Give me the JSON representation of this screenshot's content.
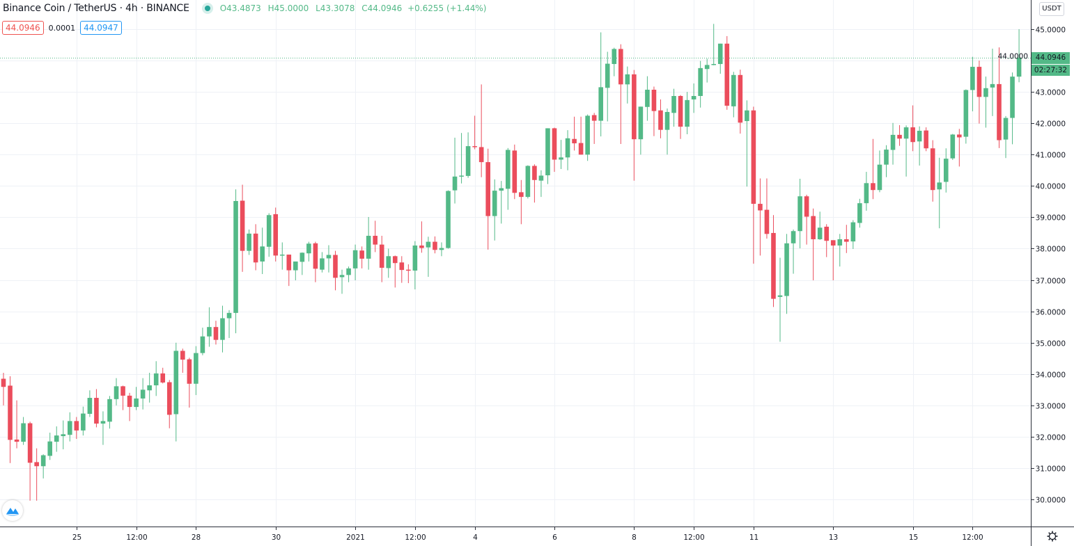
{
  "header": {
    "symbol_title": "Binance Coin / TetherUS · 4h · BINANCE",
    "open_label": "O",
    "open": "43.4873",
    "high_label": "H",
    "high": "45.0000",
    "low_label": "L",
    "low": "43.3078",
    "close_label": "C",
    "close": "44.0946",
    "change": "+0.6255 (+1.44%)",
    "sell_price": "44.0946",
    "spread": "0.0001",
    "buy_price": "44.0947"
  },
  "price_axis": {
    "currency": "USDT",
    "last_price": "44.0946",
    "countdown": "02:27:32"
  },
  "colors": {
    "up": "#53b987",
    "down": "#eb4d5c",
    "grid": "#eef1f6",
    "last_price_line": "#53b987"
  },
  "chart_data": {
    "type": "candlestick",
    "interval": "4h",
    "ylim": [
      29.5,
      45.4
    ],
    "y_ticks": [
      "30.0000",
      "31.0000",
      "32.0000",
      "33.0000",
      "34.0000",
      "35.0000",
      "36.0000",
      "37.0000",
      "38.0000",
      "39.0000",
      "40.0000",
      "41.0000",
      "42.0000",
      "43.0000",
      "44.0000",
      "45.0000"
    ],
    "x_ticks": [
      {
        "label": "25",
        "candle": 11
      },
      {
        "label": "12:00",
        "candle": 20
      },
      {
        "label": "28",
        "candle": 29
      },
      {
        "label": "30",
        "candle": 41
      },
      {
        "label": "2021",
        "candle": 53
      },
      {
        "label": "12:00",
        "candle": 62
      },
      {
        "label": "4",
        "candle": 71
      },
      {
        "label": "6",
        "candle": 83
      },
      {
        "label": "8",
        "candle": 95
      },
      {
        "label": "12:00",
        "candle": 104
      },
      {
        "label": "11",
        "candle": 113
      },
      {
        "label": "13",
        "candle": 125
      },
      {
        "label": "15",
        "candle": 137
      },
      {
        "label": "12:00",
        "candle": 146
      }
    ],
    "grid": true,
    "last_price": 44.0946,
    "ohlc_columns": [
      "open",
      "high",
      "low",
      "close"
    ],
    "candles": [
      [
        33.85,
        34.04,
        33.0,
        33.59
      ],
      [
        33.63,
        33.93,
        31.16,
        31.9
      ],
      [
        31.91,
        33.16,
        31.63,
        31.84
      ],
      [
        31.84,
        32.63,
        31.74,
        32.43
      ],
      [
        32.43,
        32.48,
        29.96,
        31.17
      ],
      [
        31.19,
        31.63,
        29.96,
        31.06
      ],
      [
        31.06,
        31.44,
        30.67,
        31.41
      ],
      [
        31.39,
        32.13,
        31.26,
        31.85
      ],
      [
        31.84,
        32.33,
        31.52,
        32.04
      ],
      [
        32.02,
        32.52,
        31.6,
        32.08
      ],
      [
        32.06,
        32.78,
        31.85,
        32.5
      ],
      [
        32.5,
        32.63,
        31.93,
        32.2
      ],
      [
        32.2,
        32.96,
        32.04,
        32.74
      ],
      [
        32.73,
        33.48,
        32.63,
        33.24
      ],
      [
        33.24,
        33.52,
        32.3,
        32.42
      ],
      [
        32.42,
        32.81,
        31.74,
        32.5
      ],
      [
        32.48,
        33.3,
        32.26,
        33.2
      ],
      [
        33.2,
        33.87,
        33.0,
        33.61
      ],
      [
        33.61,
        33.63,
        32.85,
        33.31
      ],
      [
        33.31,
        33.4,
        32.5,
        32.95
      ],
      [
        32.95,
        33.59,
        32.85,
        33.22
      ],
      [
        33.22,
        33.87,
        32.87,
        33.5
      ],
      [
        33.48,
        34.04,
        33.09,
        33.64
      ],
      [
        33.64,
        34.41,
        33.3,
        34.02
      ],
      [
        34.02,
        34.2,
        33.7,
        33.73
      ],
      [
        33.74,
        33.81,
        32.27,
        32.7
      ],
      [
        32.72,
        35.0,
        31.85,
        34.74
      ],
      [
        34.74,
        34.81,
        34.04,
        34.46
      ],
      [
        34.47,
        34.52,
        32.93,
        33.69
      ],
      [
        33.69,
        34.89,
        33.33,
        34.67
      ],
      [
        34.67,
        35.48,
        34.6,
        35.2
      ],
      [
        35.2,
        36.13,
        34.87,
        35.5
      ],
      [
        35.5,
        35.7,
        34.94,
        35.09
      ],
      [
        35.09,
        36.18,
        34.69,
        35.78
      ],
      [
        35.78,
        36.04,
        35.15,
        35.95
      ],
      [
        35.95,
        39.89,
        35.3,
        39.52
      ],
      [
        39.53,
        40.04,
        37.26,
        37.93
      ],
      [
        37.93,
        38.61,
        37.8,
        38.48
      ],
      [
        38.48,
        38.78,
        37.31,
        37.56
      ],
      [
        37.59,
        38.67,
        37.19,
        38.07
      ],
      [
        38.06,
        39.13,
        37.74,
        39.07
      ],
      [
        39.1,
        39.31,
        37.59,
        37.78
      ],
      [
        37.78,
        38.2,
        37.33,
        37.81
      ],
      [
        37.81,
        37.81,
        36.81,
        37.31
      ],
      [
        37.31,
        37.59,
        36.99,
        37.59
      ],
      [
        37.58,
        37.88,
        37.16,
        37.87
      ],
      [
        37.85,
        38.22,
        37.59,
        38.16
      ],
      [
        38.17,
        38.22,
        36.93,
        37.36
      ],
      [
        37.33,
        37.89,
        37.24,
        37.69
      ],
      [
        37.69,
        38.11,
        37.24,
        37.8
      ],
      [
        37.8,
        37.93,
        36.67,
        37.07
      ],
      [
        37.09,
        37.33,
        36.56,
        37.16
      ],
      [
        37.16,
        37.43,
        36.93,
        37.37
      ],
      [
        37.37,
        38.13,
        36.99,
        37.95
      ],
      [
        37.94,
        38.07,
        37.37,
        37.68
      ],
      [
        37.68,
        39.01,
        37.33,
        38.41
      ],
      [
        38.41,
        38.89,
        37.89,
        38.13
      ],
      [
        38.13,
        38.41,
        36.93,
        37.39
      ],
      [
        37.38,
        38.0,
        37.07,
        37.76
      ],
      [
        37.76,
        37.78,
        36.76,
        37.54
      ],
      [
        37.56,
        37.76,
        36.91,
        37.32
      ],
      [
        37.33,
        37.5,
        36.9,
        37.31
      ],
      [
        37.3,
        38.24,
        36.7,
        38.1
      ],
      [
        38.1,
        38.87,
        37.87,
        38.02
      ],
      [
        38.04,
        38.38,
        37.1,
        38.22
      ],
      [
        38.22,
        38.39,
        37.85,
        37.96
      ],
      [
        37.96,
        38.2,
        37.76,
        38.02
      ],
      [
        38.02,
        39.86,
        38.0,
        39.84
      ],
      [
        39.86,
        41.54,
        39.44,
        40.3
      ],
      [
        40.32,
        41.69,
        40.08,
        40.33
      ],
      [
        40.32,
        41.71,
        40.26,
        41.27
      ],
      [
        41.27,
        42.24,
        41.17,
        41.24
      ],
      [
        41.24,
        43.24,
        40.28,
        40.76
      ],
      [
        40.76,
        41.19,
        37.97,
        39.04
      ],
      [
        39.04,
        40.21,
        38.26,
        39.85
      ],
      [
        39.85,
        40.16,
        38.8,
        39.93
      ],
      [
        39.91,
        41.21,
        39.24,
        41.15
      ],
      [
        41.13,
        41.32,
        39.58,
        39.78
      ],
      [
        39.8,
        40.19,
        38.78,
        39.65
      ],
      [
        39.65,
        40.66,
        39.6,
        40.64
      ],
      [
        40.64,
        40.69,
        39.47,
        40.19
      ],
      [
        40.17,
        40.5,
        39.65,
        40.33
      ],
      [
        40.34,
        41.84,
        40.06,
        41.84
      ],
      [
        41.84,
        41.86,
        40.45,
        40.84
      ],
      [
        40.84,
        41.47,
        40.54,
        40.91
      ],
      [
        40.91,
        41.78,
        40.5,
        41.52
      ],
      [
        41.5,
        42.21,
        41.13,
        41.36
      ],
      [
        41.37,
        42.21,
        41.0,
        41.0
      ],
      [
        41.0,
        42.28,
        40.8,
        42.24
      ],
      [
        42.26,
        42.33,
        41.34,
        42.08
      ],
      [
        42.08,
        44.9,
        41.58,
        43.15
      ],
      [
        43.13,
        44.28,
        42.06,
        43.9
      ],
      [
        43.89,
        44.41,
        43.5,
        44.37
      ],
      [
        44.37,
        44.52,
        41.34,
        43.24
      ],
      [
        43.24,
        43.81,
        42.63,
        43.56
      ],
      [
        43.56,
        43.7,
        40.17,
        41.49
      ],
      [
        41.49,
        42.53,
        41.0,
        42.53
      ],
      [
        42.52,
        43.5,
        42.08,
        43.07
      ],
      [
        43.07,
        43.17,
        41.59,
        42.39
      ],
      [
        42.41,
        42.76,
        41.52,
        41.79
      ],
      [
        41.79,
        42.47,
        41.0,
        42.36
      ],
      [
        42.33,
        43.1,
        41.89,
        42.87
      ],
      [
        42.87,
        42.9,
        41.5,
        41.89
      ],
      [
        41.89,
        43.0,
        41.65,
        42.74
      ],
      [
        42.76,
        43.27,
        42.33,
        42.87
      ],
      [
        42.87,
        43.99,
        42.5,
        43.76
      ],
      [
        43.73,
        44.06,
        43.3,
        43.86
      ],
      [
        43.87,
        45.17,
        43.85,
        43.89
      ],
      [
        43.89,
        44.54,
        43.58,
        44.54
      ],
      [
        44.54,
        44.78,
        42.43,
        42.56
      ],
      [
        42.54,
        43.64,
        42.19,
        43.54
      ],
      [
        43.54,
        43.71,
        41.67,
        42.02
      ],
      [
        42.07,
        42.73,
        39.98,
        42.41
      ],
      [
        42.41,
        42.53,
        37.52,
        39.43
      ],
      [
        39.43,
        40.24,
        37.78,
        39.22
      ],
      [
        39.24,
        40.24,
        38.32,
        38.47
      ],
      [
        38.5,
        39.07,
        36.14,
        36.4
      ],
      [
        36.46,
        37.71,
        35.03,
        36.51
      ],
      [
        36.49,
        38.47,
        35.92,
        38.17
      ],
      [
        38.17,
        38.61,
        37.2,
        38.56
      ],
      [
        38.56,
        40.23,
        38.01,
        39.67
      ],
      [
        39.67,
        39.72,
        38.13,
        39.02
      ],
      [
        39.04,
        39.28,
        36.99,
        38.3
      ],
      [
        38.3,
        39.18,
        38.28,
        38.67
      ],
      [
        38.7,
        38.78,
        37.73,
        38.25
      ],
      [
        38.27,
        38.27,
        36.99,
        38.1
      ],
      [
        38.1,
        38.47,
        37.43,
        38.3
      ],
      [
        38.3,
        38.76,
        37.86,
        38.22
      ],
      [
        38.23,
        38.91,
        37.99,
        38.84
      ],
      [
        38.82,
        39.59,
        38.67,
        39.45
      ],
      [
        39.45,
        40.45,
        39.21,
        40.09
      ],
      [
        40.09,
        41.5,
        39.58,
        39.87
      ],
      [
        39.87,
        41.13,
        39.8,
        40.68
      ],
      [
        40.68,
        41.3,
        40.28,
        41.16
      ],
      [
        41.15,
        42.01,
        40.68,
        41.63
      ],
      [
        41.63,
        41.94,
        41.28,
        41.51
      ],
      [
        41.51,
        41.93,
        40.3,
        41.87
      ],
      [
        41.87,
        42.57,
        41.11,
        41.4
      ],
      [
        41.42,
        41.9,
        40.65,
        41.76
      ],
      [
        41.77,
        41.87,
        41.11,
        41.2
      ],
      [
        41.2,
        41.46,
        39.5,
        39.87
      ],
      [
        39.89,
        40.9,
        38.65,
        40.11
      ],
      [
        40.13,
        41.2,
        39.79,
        40.87
      ],
      [
        40.88,
        41.66,
        40.83,
        41.64
      ],
      [
        41.64,
        41.82,
        40.62,
        41.55
      ],
      [
        41.57,
        43.08,
        41.35,
        43.06
      ],
      [
        43.06,
        44.12,
        42.38,
        43.8
      ],
      [
        43.8,
        44.0,
        41.99,
        42.84
      ],
      [
        42.84,
        43.49,
        41.86,
        43.12
      ],
      [
        43.14,
        44.38,
        42.23,
        43.25
      ],
      [
        43.25,
        44.42,
        41.21,
        41.46
      ],
      [
        41.48,
        42.23,
        40.89,
        42.17
      ],
      [
        42.17,
        43.62,
        41.33,
        43.4873
      ],
      [
        43.4873,
        45.0,
        43.3078,
        44.0946
      ]
    ]
  }
}
